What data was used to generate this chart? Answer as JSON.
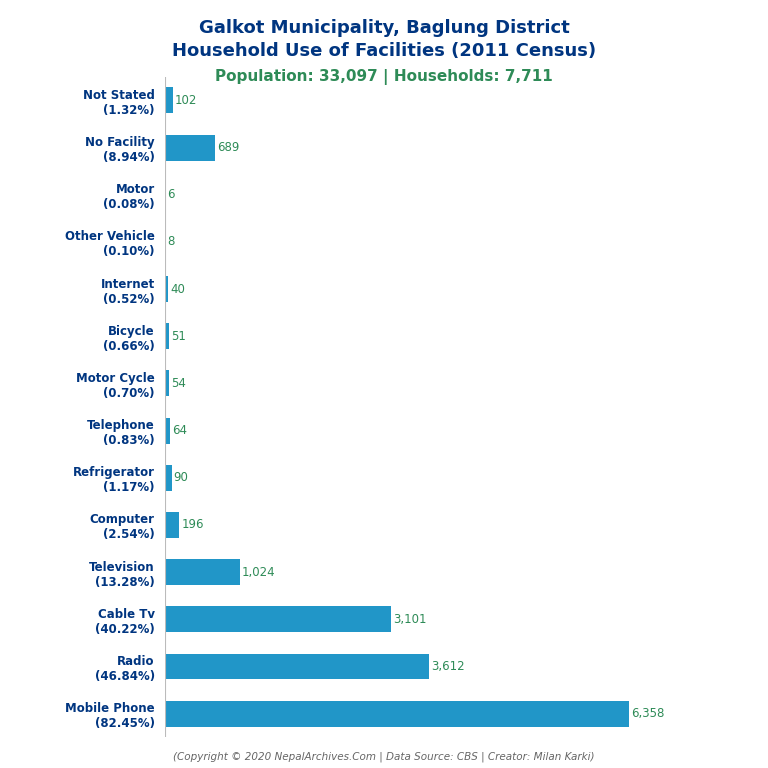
{
  "title_line1": "Galkot Municipality, Baglung District",
  "title_line2": "Household Use of Facilities (2011 Census)",
  "subtitle": "Population: 33,097 | Households: 7,711",
  "copyright": "(Copyright © 2020 NepalArchives.Com | Data Source: CBS | Creator: Milan Karki)",
  "categories_top_to_bottom": [
    "Not Stated\n(1.32%)",
    "No Facility\n(8.94%)",
    "Motor\n(0.08%)",
    "Other Vehicle\n(0.10%)",
    "Internet\n(0.52%)",
    "Bicycle\n(0.66%)",
    "Motor Cycle\n(0.70%)",
    "Telephone\n(0.83%)",
    "Refrigerator\n(1.17%)",
    "Computer\n(2.54%)",
    "Television\n(13.28%)",
    "Cable Tv\n(40.22%)",
    "Radio\n(46.84%)",
    "Mobile Phone\n(82.45%)"
  ],
  "values_top_to_bottom": [
    102,
    689,
    6,
    8,
    40,
    51,
    54,
    64,
    90,
    196,
    1024,
    3101,
    3612,
    6358
  ],
  "bar_color": "#2196C8",
  "label_color": "#2E8B57",
  "title_color": "#003580",
  "subtitle_color": "#2E8B57",
  "copyright_color": "#666666",
  "ylabel_color": "#003580",
  "background_color": "#ffffff",
  "xlim_max": 7000,
  "bar_height": 0.55,
  "title_fontsize": 13,
  "subtitle_fontsize": 11,
  "label_fontsize": 8.5,
  "ytick_fontsize": 8.5,
  "copyright_fontsize": 7.5
}
